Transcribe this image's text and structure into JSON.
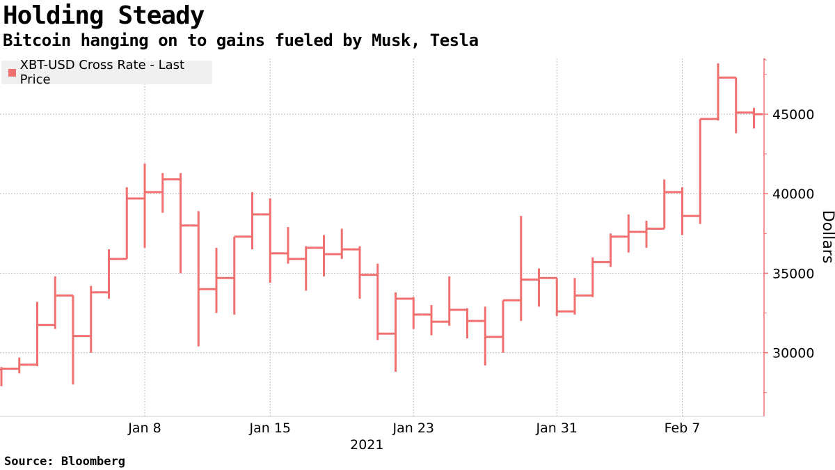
{
  "title": "Holding Steady",
  "subtitle": "Bitcoin hanging on to gains fueled by Musk, Tesla",
  "source": "Source: Bloomberg",
  "chart_data": {
    "type": "ohlc",
    "series_name": "XBT-USD Cross Rate - Last Price",
    "color": "#f07070",
    "grid_color": "#bbbbbb",
    "ylabel": "Dollars",
    "ylim": [
      26000,
      48500
    ],
    "yticks": [
      30000,
      35000,
      40000,
      45000
    ],
    "ytick_labels": [
      "30000",
      "35000",
      "40000",
      "45000"
    ],
    "xlabel_year": "2021",
    "x_day_range": [
      0,
      43
    ],
    "xticks": [
      {
        "day": 8,
        "label": "Jan 8"
      },
      {
        "day": 15,
        "label": "Jan 15"
      },
      {
        "day": 23,
        "label": "Jan 23"
      },
      {
        "day": 31,
        "label": "Jan 31"
      },
      {
        "day": 38,
        "label": "Feb 7"
      }
    ],
    "candles": [
      {
        "day": 0,
        "open": 28950,
        "high": 29100,
        "low": 27900,
        "close": 29000
      },
      {
        "day": 1,
        "open": 29000,
        "high": 29700,
        "low": 28700,
        "close": 29250
      },
      {
        "day": 2,
        "open": 29250,
        "high": 33200,
        "low": 29150,
        "close": 31750
      },
      {
        "day": 3,
        "open": 31750,
        "high": 34800,
        "low": 31500,
        "close": 33600
      },
      {
        "day": 4,
        "open": 33600,
        "high": 33600,
        "low": 28000,
        "close": 31050
      },
      {
        "day": 5,
        "open": 31050,
        "high": 34200,
        "low": 30000,
        "close": 33800
      },
      {
        "day": 6,
        "open": 33800,
        "high": 36500,
        "low": 33400,
        "close": 35900
      },
      {
        "day": 7,
        "open": 35900,
        "high": 40400,
        "low": 35900,
        "close": 39700
      },
      {
        "day": 8,
        "open": 39700,
        "high": 41900,
        "low": 36600,
        "close": 40100
      },
      {
        "day": 9,
        "open": 40100,
        "high": 41300,
        "low": 38800,
        "close": 40900
      },
      {
        "day": 10,
        "open": 40900,
        "high": 41300,
        "low": 35000,
        "close": 38000
      },
      {
        "day": 11,
        "open": 38000,
        "high": 38900,
        "low": 30400,
        "close": 34000
      },
      {
        "day": 12,
        "open": 34000,
        "high": 36600,
        "low": 32500,
        "close": 34700
      },
      {
        "day": 13,
        "open": 34700,
        "high": 37300,
        "low": 32400,
        "close": 37300
      },
      {
        "day": 14,
        "open": 37300,
        "high": 40100,
        "low": 36500,
        "close": 38700
      },
      {
        "day": 15,
        "open": 38700,
        "high": 39700,
        "low": 34400,
        "close": 36250
      },
      {
        "day": 16,
        "open": 36250,
        "high": 37900,
        "low": 35600,
        "close": 35900
      },
      {
        "day": 17,
        "open": 35900,
        "high": 36700,
        "low": 33900,
        "close": 36600
      },
      {
        "day": 18,
        "open": 36600,
        "high": 37400,
        "low": 34800,
        "close": 36200
      },
      {
        "day": 19,
        "open": 36200,
        "high": 37800,
        "low": 35900,
        "close": 36500
      },
      {
        "day": 20,
        "open": 36500,
        "high": 36700,
        "low": 33400,
        "close": 34900
      },
      {
        "day": 21,
        "open": 34900,
        "high": 35600,
        "low": 30800,
        "close": 31200
      },
      {
        "day": 22,
        "open": 31200,
        "high": 33800,
        "low": 28800,
        "close": 33400
      },
      {
        "day": 23,
        "open": 33400,
        "high": 33500,
        "low": 31500,
        "close": 32400
      },
      {
        "day": 24,
        "open": 32400,
        "high": 33000,
        "low": 31100,
        "close": 31950
      },
      {
        "day": 25,
        "open": 31950,
        "high": 34800,
        "low": 31700,
        "close": 32700
      },
      {
        "day": 26,
        "open": 32700,
        "high": 32800,
        "low": 30900,
        "close": 32000
      },
      {
        "day": 27,
        "open": 32000,
        "high": 32900,
        "low": 29200,
        "close": 31000
      },
      {
        "day": 28,
        "open": 31000,
        "high": 33300,
        "low": 30000,
        "close": 33300
      },
      {
        "day": 29,
        "open": 33300,
        "high": 38600,
        "low": 32000,
        "close": 34600
      },
      {
        "day": 30,
        "open": 34600,
        "high": 35300,
        "low": 32900,
        "close": 34700
      },
      {
        "day": 31,
        "open": 34700,
        "high": 34700,
        "low": 32300,
        "close": 32600
      },
      {
        "day": 32,
        "open": 32600,
        "high": 34700,
        "low": 32400,
        "close": 33600
      },
      {
        "day": 33,
        "open": 33600,
        "high": 36000,
        "low": 33500,
        "close": 35700
      },
      {
        "day": 34,
        "open": 35700,
        "high": 37500,
        "low": 35400,
        "close": 37300
      },
      {
        "day": 35,
        "open": 37300,
        "high": 38700,
        "low": 36300,
        "close": 37600
      },
      {
        "day": 36,
        "open": 37600,
        "high": 38300,
        "low": 36600,
        "close": 37800
      },
      {
        "day": 37,
        "open": 37800,
        "high": 40900,
        "low": 37800,
        "close": 40100
      },
      {
        "day": 38,
        "open": 40100,
        "high": 40400,
        "low": 37400,
        "close": 38600
      },
      {
        "day": 39,
        "open": 38600,
        "high": 44700,
        "low": 38100,
        "close": 44700
      },
      {
        "day": 40,
        "open": 44700,
        "high": 48200,
        "low": 44600,
        "close": 47300
      },
      {
        "day": 41,
        "open": 47300,
        "high": 47300,
        "low": 43800,
        "close": 45100
      },
      {
        "day": 42,
        "open": 45100,
        "high": 45400,
        "low": 44100,
        "close": 45000
      }
    ]
  }
}
